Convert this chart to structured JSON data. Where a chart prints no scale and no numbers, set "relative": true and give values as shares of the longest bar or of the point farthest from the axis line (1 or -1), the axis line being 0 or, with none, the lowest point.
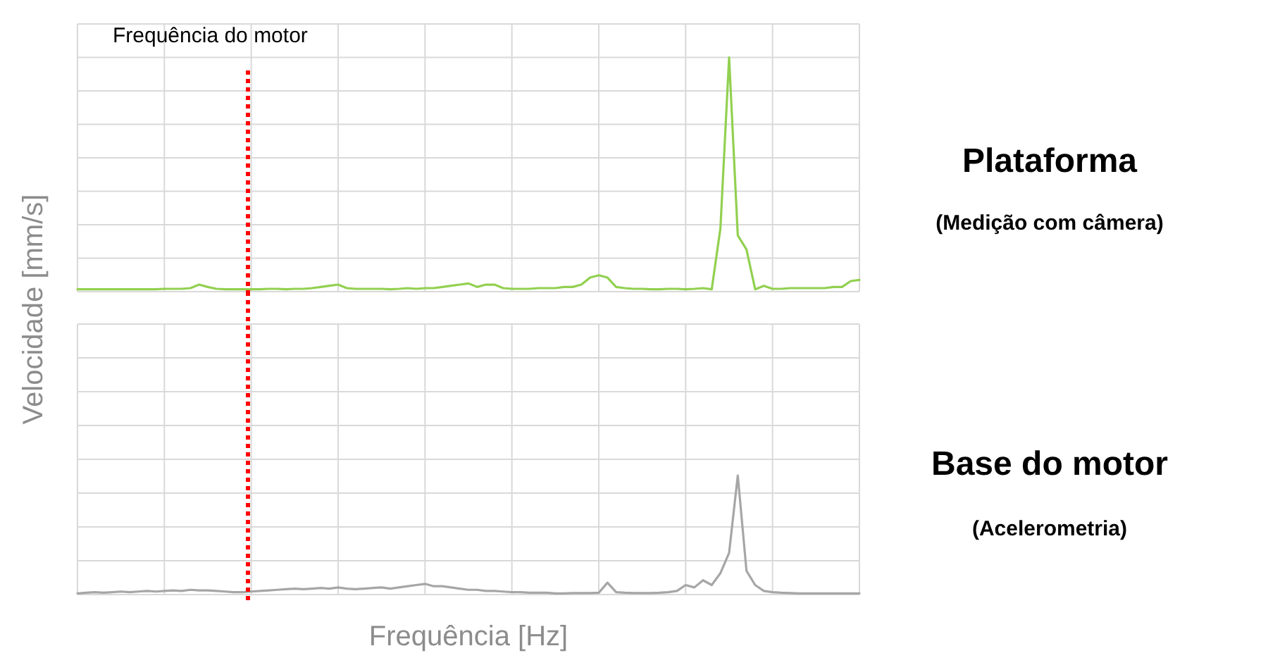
{
  "chart_data": [
    {
      "type": "line",
      "ylabel": "Velocidade [mm/s]",
      "relative": true,
      "grid": true,
      "categories": [
        null,
        null,
        null,
        null,
        null,
        null,
        null,
        null,
        null,
        null,
        null,
        null,
        null,
        null,
        null,
        null,
        null,
        null,
        null,
        null,
        null,
        null,
        null,
        null,
        null,
        null,
        null,
        null,
        null,
        null,
        null,
        null,
        null,
        null,
        null,
        null,
        null,
        null,
        null,
        null,
        null,
        null,
        null,
        null,
        null,
        null,
        null,
        null,
        null,
        null,
        null,
        null,
        null,
        null,
        null,
        null,
        null,
        null,
        null,
        null,
        null,
        null,
        null,
        null,
        null,
        null,
        null,
        null,
        null,
        null,
        null,
        null,
        null,
        null,
        null,
        null,
        null,
        null,
        null,
        null,
        null,
        null,
        null,
        null,
        null,
        null,
        null,
        null,
        null,
        null,
        null
      ],
      "annotations": [
        "Plataforma",
        "(Medição com câmera)",
        "Frequência do motor"
      ],
      "series": [
        {
          "color": "#92d050",
          "values": [
            0.01,
            0.01,
            0.01,
            0.01,
            0.01,
            0.01,
            0.01,
            0.01,
            0.01,
            0.01,
            0.012,
            0.012,
            0.012,
            0.015,
            0.03,
            0.02,
            0.012,
            0.01,
            0.01,
            0.01,
            0.01,
            0.01,
            0.012,
            0.012,
            0.01,
            0.012,
            0.012,
            0.015,
            0.02,
            0.025,
            0.03,
            0.015,
            0.012,
            0.012,
            0.012,
            0.012,
            0.01,
            0.012,
            0.015,
            0.012,
            0.015,
            0.015,
            0.02,
            0.025,
            0.03,
            0.035,
            0.02,
            0.03,
            0.03,
            0.015,
            0.012,
            0.012,
            0.012,
            0.015,
            0.015,
            0.015,
            0.02,
            0.02,
            0.03,
            0.06,
            0.07,
            0.06,
            0.02,
            0.015,
            0.012,
            0.012,
            0.01,
            0.01,
            0.012,
            0.012,
            0.01,
            0.012,
            0.015,
            0.01,
            0.27,
            1.0,
            0.24,
            0.18,
            0.01,
            0.025,
            0.012,
            0.012,
            0.015,
            0.015,
            0.015,
            0.015,
            0.015,
            0.02,
            0.02,
            0.045,
            0.05
          ]
        }
      ]
    },
    {
      "type": "line",
      "annotations": [
        "Base do motor",
        "(Acelerometria)"
      ],
      "xlabel": "Frequência [Hz]",
      "relative": true,
      "grid": true,
      "categories": [
        null,
        null,
        null,
        null,
        null,
        null,
        null,
        null,
        null,
        null,
        null,
        null,
        null,
        null,
        null,
        null,
        null,
        null,
        null,
        null,
        null,
        null,
        null,
        null,
        null,
        null,
        null,
        null,
        null,
        null,
        null,
        null,
        null,
        null,
        null,
        null,
        null,
        null,
        null,
        null,
        null,
        null,
        null,
        null,
        null,
        null,
        null,
        null,
        null,
        null,
        null,
        null,
        null,
        null,
        null,
        null,
        null,
        null,
        null,
        null,
        null,
        null,
        null,
        null,
        null,
        null,
        null,
        null,
        null,
        null,
        null,
        null,
        null,
        null,
        null,
        null,
        null,
        null,
        null,
        null,
        null,
        null,
        null,
        null,
        null,
        null,
        null,
        null,
        null,
        null,
        null
      ],
      "series": [
        {
          "color": "#a6a6a6",
          "values": [
            0.01,
            0.015,
            0.02,
            0.015,
            0.02,
            0.025,
            0.02,
            0.025,
            0.03,
            0.025,
            0.03,
            0.035,
            0.03,
            0.04,
            0.035,
            0.035,
            0.03,
            0.025,
            0.02,
            0.02,
            0.025,
            0.03,
            0.035,
            0.04,
            0.045,
            0.05,
            0.045,
            0.05,
            0.055,
            0.05,
            0.06,
            0.05,
            0.045,
            0.05,
            0.055,
            0.06,
            0.05,
            0.06,
            0.07,
            0.08,
            0.09,
            0.07,
            0.07,
            0.06,
            0.05,
            0.04,
            0.04,
            0.03,
            0.03,
            0.025,
            0.02,
            0.02,
            0.015,
            0.015,
            0.015,
            0.01,
            0.01,
            0.012,
            0.012,
            0.012,
            0.015,
            0.1,
            0.02,
            0.015,
            0.012,
            0.012,
            0.012,
            0.015,
            0.02,
            0.03,
            0.08,
            0.06,
            0.12,
            0.08,
            0.18,
            0.35,
            1.0,
            0.2,
            0.08,
            0.03,
            0.02,
            0.015,
            0.012,
            0.01,
            0.01,
            0.01,
            0.01,
            0.01,
            0.01,
            0.01,
            0.01
          ]
        }
      ]
    }
  ]
}
